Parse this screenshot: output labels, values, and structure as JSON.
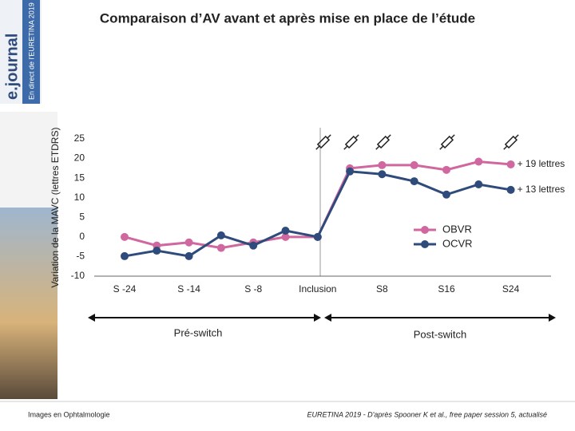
{
  "sidebar": {
    "banner": "En direct de l'EURETINA 2019",
    "brand": "e.journal"
  },
  "chart_data": {
    "type": "line",
    "title": "Comparaison d’AV avant et après mise en place de l’étude",
    "y_label": "Variation de la MAVC (lettres ETDRS)",
    "categories": [
      "S -24",
      null,
      "S -14",
      null,
      "S -8",
      null,
      "Inclusion",
      null,
      "S8",
      null,
      "S16",
      null,
      "S24"
    ],
    "series": [
      {
        "name": "OBVR",
        "color": "#d0679f",
        "values": [
          0,
          -2.2,
          -1.4,
          -2.8,
          -1.4,
          0,
          0,
          17.5,
          18.3,
          18.3,
          17.1,
          19.2,
          18.5
        ]
      },
      {
        "name": "OCVR",
        "color": "#2f4b7c",
        "values": [
          -4.9,
          -3.5,
          -4.9,
          0.4,
          -2.2,
          1.6,
          0,
          16.7,
          16,
          14.2,
          10.8,
          13.4,
          12
        ]
      }
    ],
    "annotations": [
      "+ 19 lettres",
      "+ 13 lettres"
    ],
    "periods": [
      "Pré-switch",
      "Post-switch"
    ],
    "ylim": [
      -10,
      25
    ],
    "yticks": [
      -10,
      -5,
      0,
      5,
      10,
      15,
      20,
      25
    ],
    "legend": "right"
  },
  "footer": {
    "left": "Images en Ophtalmologie",
    "right": "EURETINA 2019 - D'après Spooner K et al., free paper session 5, actualisé"
  }
}
